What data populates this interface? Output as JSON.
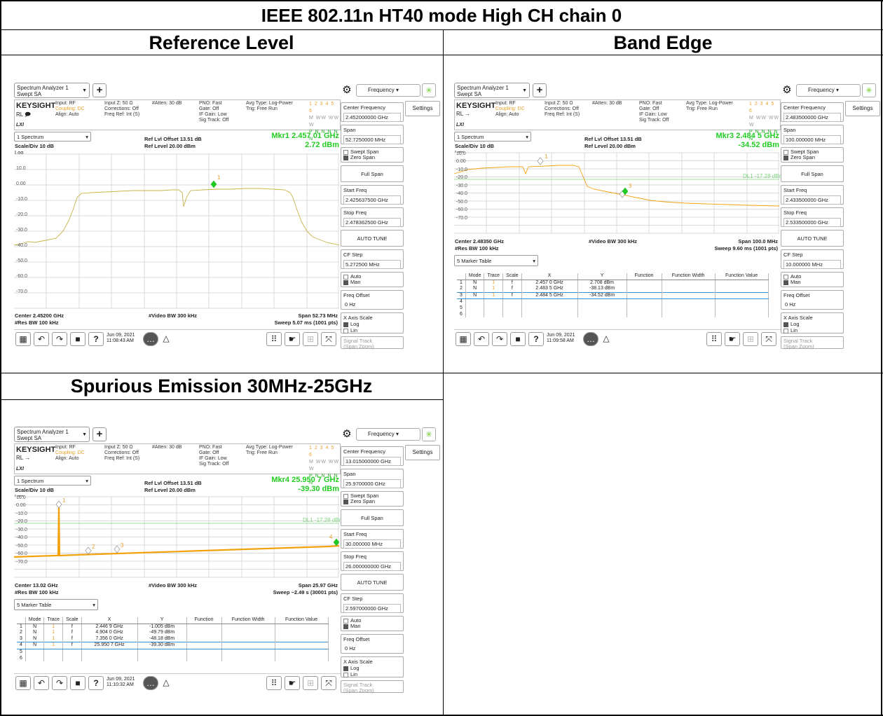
{
  "title": "IEEE 802.11n HT40 mode High CH chain 0",
  "sections": {
    "ref": "Reference Level",
    "band": "Band Edge",
    "spur": "Spurious Emission 30MHz-25GHz"
  },
  "common": {
    "window_title": "Spectrum Analyzer 1",
    "window_sub": "Swept SA",
    "brand": "KEYSIGHT",
    "rl": "RL",
    "lxi": "LXI",
    "input_rf": "Input: RF",
    "coupling": "Coupling: DC",
    "align": "Align: Auto",
    "input_z": "Input Z: 50 Ω",
    "corrections": "Corrections: Off",
    "freq_ref": "Freq Ref: Int (S)",
    "atten": "#Atten: 30 dB",
    "pno": "PNO: Fast",
    "gate": "Gate: Off",
    "if_gain": "IF Gain: Low",
    "sig_track": "Sig Track: Off",
    "avg_type": "Avg Type: Log-Power",
    "trig": "Trig: Free Run",
    "trace_nums": "1 2 3 4 5 6",
    "trace_row2": "M WW WW W",
    "trace_row3": "P N N N N N",
    "freq_menu": "Frequency",
    "settings": "Settings",
    "spectrum_sel": "1 Spectrum",
    "scale_div": "Scale/Div 10 dB",
    "log": "Log",
    "ref_offset": "Ref Lvl Offset 13.51 dB",
    "ref_level": "Ref Level 20.00 dBm",
    "vbw": "#Video BW 300 kHz",
    "marker_table_sel": "5 Marker Table",
    "center_freq_label": "Center Frequency",
    "span_label": "Span",
    "swept_span": "Swept Span",
    "zero_span": "Zero Span",
    "full_span": "Full Span",
    "start_freq_label": "Start Freq",
    "stop_freq_label": "Stop Freq",
    "auto_tune": "AUTO TUNE",
    "cf_step_label": "CF Step",
    "auto": "Auto",
    "man": "Man",
    "freq_offset_label": "Freq Offset",
    "freq_offset_val": "0 Hz",
    "x_axis_scale": "X Axis Scale",
    "log_opt": "Log",
    "lin_opt": "Lin",
    "signal_track": "Signal Track",
    "span_zoom": "(Span Zoom)",
    "table_headers": [
      "",
      "Mode",
      "Trace",
      "Scale",
      "X",
      "Y",
      "Function",
      "Function Width",
      "Function Value"
    ]
  },
  "panel_ref": {
    "marker_label": "Mkr1 2.457 01 GHz",
    "marker_value": "2.72 dBm",
    "y_ticks": [
      "10.0",
      "0.00",
      "-10.0",
      "-20.0",
      "-30.0",
      "-40.0",
      "-50.0",
      "-60.0",
      "-70.0"
    ],
    "center": "Center 2.45200 GHz",
    "rbw": "#Res BW 100 kHz",
    "span": "Span 52.73 MHz",
    "sweep": "Sweep 5.07 ms (1001 pts)",
    "date": "Jun 09, 2021",
    "time": "11:08:43 AM",
    "center_freq": "2.452000000 GHz",
    "span_val": "52.7250000 MHz",
    "start_freq": "2.425637500 GHz",
    "stop_freq": "2.478362500 GHz",
    "cf_step": "5.272500 MHz",
    "mk_num": "1"
  },
  "panel_band": {
    "marker_label": "Mkr3 2.484 5 GHz",
    "marker_value": "-34.52 dBm",
    "y_ticks": [
      "10.0",
      "0.00",
      "-10.0",
      "-20.0",
      "-30.0",
      "-40.0",
      "-50.0",
      "-60.0",
      "-70.0"
    ],
    "limit_label": "DL1 -17.28 dBm",
    "center": "Center 2.48350 GHz",
    "rbw": "#Res BW 100 kHz",
    "span": "Span 100.0 MHz",
    "sweep": "Sweep 9.60 ms (1001 pts)",
    "date": "Jun 09, 2021",
    "time": "11:09:58 AM",
    "center_freq": "2.483500000 GHz",
    "span_val": "100.000000 MHz",
    "start_freq": "2.433500000 GHz",
    "stop_freq": "2.533500000 GHz",
    "cf_step": "10.000000 MHz",
    "rows": [
      [
        "1",
        "N",
        "1",
        "f",
        "2.457 0 GHz",
        "2.708 dBm",
        "",
        "",
        ""
      ],
      [
        "2",
        "N",
        "1",
        "f",
        "2.483 5 GHz",
        "-38.13 dBm",
        "",
        "",
        ""
      ],
      [
        "3",
        "N",
        "1",
        "f",
        "2.484 5 GHz",
        "-34.52 dBm",
        "",
        "",
        ""
      ],
      [
        "4",
        "",
        "",
        "",
        "",
        "",
        "",
        "",
        ""
      ],
      [
        "5",
        "",
        "",
        "",
        "",
        "",
        "",
        "",
        ""
      ],
      [
        "6",
        "",
        "",
        "",
        "",
        "",
        "",
        "",
        ""
      ]
    ],
    "mk1": "1",
    "mk3": "3"
  },
  "panel_spur": {
    "marker_label": "Mkr4 25.950 7 GHz",
    "marker_value": "-39.30 dBm",
    "y_ticks": [
      "10.0",
      "0.00",
      "-10.0",
      "-20.0",
      "-30.0",
      "-40.0",
      "-50.0",
      "-60.0",
      "-70.0"
    ],
    "limit_label": "DL1 -17.28 dBm",
    "center": "Center 13.02 GHz",
    "rbw": "#Res BW 100 kHz",
    "span": "Span 25.97 GHz",
    "sweep": "Sweep ~2.49 s (30001 pts)",
    "date": "Jun 09, 2021",
    "time": "11:10:32 AM",
    "center_freq": "13.015000000 GHz",
    "span_val": "25.9700000 GHz",
    "start_freq": "30.000000 MHz",
    "stop_freq": "26.000000000 GHz",
    "cf_step": "2.597000000 GHz",
    "rows": [
      [
        "1",
        "N",
        "1",
        "f",
        "2.446 9 GHz",
        "-1.005 dBm",
        "",
        "",
        ""
      ],
      [
        "2",
        "N",
        "1",
        "f",
        "4.904 0 GHz",
        "-49.79 dBm",
        "",
        "",
        ""
      ],
      [
        "3",
        "N",
        "1",
        "f",
        "7.356 0 GHz",
        "-48.18 dBm",
        "",
        "",
        ""
      ],
      [
        "4",
        "N",
        "1",
        "f",
        "25.950 7 GHz",
        "-39.30 dBm",
        "",
        "",
        ""
      ],
      [
        "5",
        "",
        "",
        "",
        "",
        "",
        "",
        "",
        ""
      ],
      [
        "6",
        "",
        "",
        "",
        "",
        "",
        "",
        "",
        ""
      ]
    ],
    "mk1": "1",
    "mk2": "2",
    "mk3": "3",
    "mk4": "4"
  },
  "colors": {
    "trace_ref": "#c8b44a",
    "trace": "#f2a20f",
    "marker": "#23cc23",
    "limit": "#7fd67f",
    "highlight": "#3a8fd0"
  }
}
